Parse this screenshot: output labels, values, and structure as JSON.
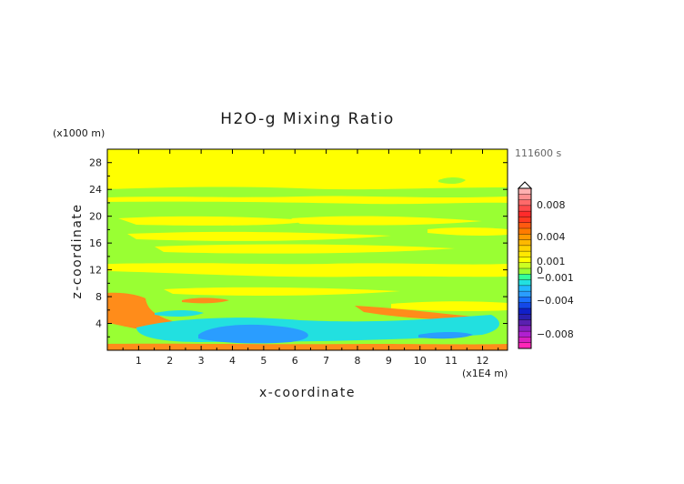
{
  "chart_data": {
    "type": "heatmap",
    "title": "H2O-g Mixing Ratio",
    "xlabel": "x-coordinate",
    "ylabel": "z-coordinate",
    "x_unit": "(x1E4 m)",
    "y_unit": "(x1000 m)",
    "time_label": "111600 s",
    "xlim": [
      0,
      12.8
    ],
    "ylim": [
      0,
      30
    ],
    "x_ticks": [
      1,
      2,
      3,
      4,
      5,
      6,
      7,
      8,
      9,
      10,
      11,
      12
    ],
    "y_ticks": [
      4,
      8,
      12,
      16,
      20,
      24,
      28
    ],
    "colorbar": {
      "labels": [
        "0.008",
        "0.004",
        "0.001",
        "0",
        "−0.001",
        "−0.004",
        "−0.008"
      ],
      "label_values": [
        0.008,
        0.004,
        0.001,
        0,
        -0.001,
        -0.004,
        -0.008
      ],
      "range": [
        -0.01,
        0.01
      ]
    },
    "regions": [
      {
        "value": 0.0002,
        "z_band": [
          26,
          30
        ]
      },
      {
        "value": -0.0003,
        "z_band": [
          23,
          24
        ]
      },
      {
        "value": -0.0003,
        "z_band": [
          15,
          22
        ]
      },
      {
        "value": -0.0003,
        "z_band": [
          8,
          13
        ]
      },
      {
        "value": 0.0025,
        "z_band": [
          4,
          8
        ],
        "x_band": [
          0,
          1.2
        ]
      },
      {
        "value": -0.0015,
        "z_band": [
          1,
          4
        ],
        "x_band": [
          1.5,
          12.5
        ]
      },
      {
        "value": -0.0035,
        "z_band": [
          1.5,
          3
        ],
        "x_band": [
          3,
          6
        ]
      }
    ]
  },
  "colors": {
    "near_zero_positive": "#ffff00",
    "near_zero_negative": "#99ff33",
    "moist_anomaly": "#ff8c1a",
    "dry_anomaly_light": "#22e0e0",
    "dry_anomaly": "#2a9dff",
    "frame": "#000000",
    "time_label": "#666666"
  }
}
